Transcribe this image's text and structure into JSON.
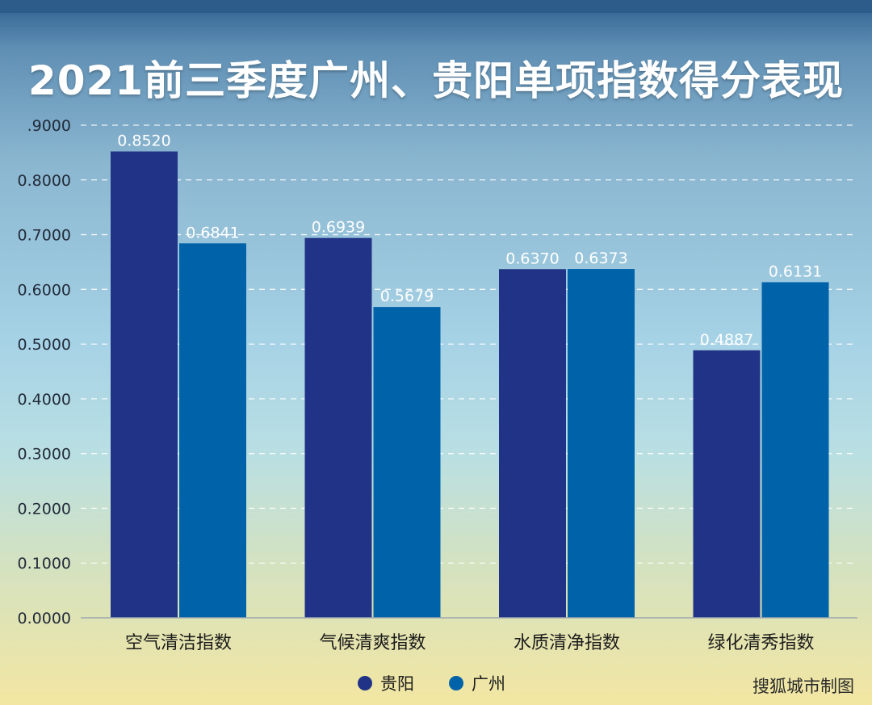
{
  "title": "2021前三季度广州、贵阳单项指数得分表现",
  "source": "搜狐城市制图",
  "colors": {
    "guiyang": "#213386",
    "guangzhou": "#0063a9"
  },
  "chart_data": {
    "type": "bar",
    "title": "2021前三季度广州、贵阳单项指数得分表现",
    "categories": [
      "空气清洁指数",
      "气候清爽指数",
      "水质清净指数",
      "绿化清秀指数"
    ],
    "series": [
      {
        "name": "贵阳",
        "values": [
          0.852,
          0.6939,
          0.637,
          0.4887
        ],
        "labels": [
          "0.8520",
          "0.6939",
          "0.6370",
          "0.4887"
        ]
      },
      {
        "name": "广州",
        "values": [
          0.6841,
          0.5679,
          0.6373,
          0.6131
        ],
        "labels": [
          "0.6841",
          "0.5679",
          "0.6373",
          "0.6131"
        ]
      }
    ],
    "ylim": [
      0,
      0.9
    ],
    "yticks": [
      "0.0000",
      "0.1000",
      "0.2000",
      "0.3000",
      "0.4000",
      "0.5000",
      "0.6000",
      "0.7000",
      "0.8000",
      ".9000"
    ],
    "grid": true,
    "legend": "bottom-center"
  }
}
